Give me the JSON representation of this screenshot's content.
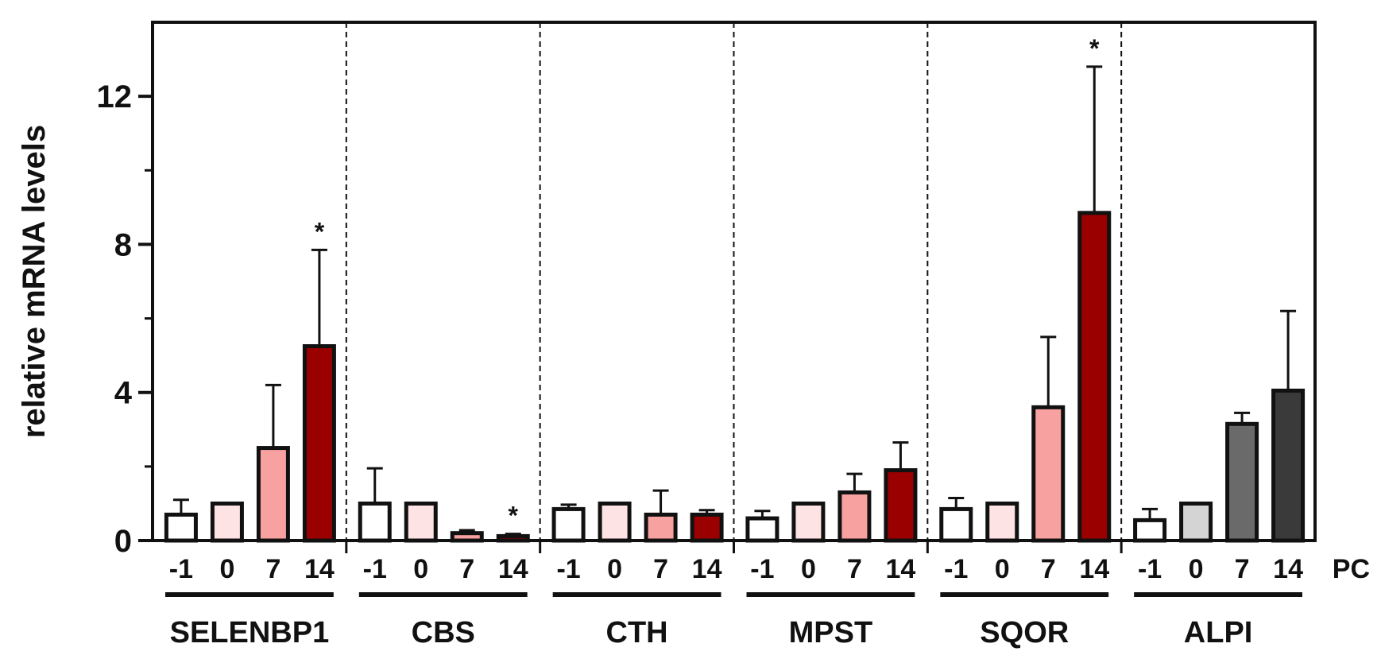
{
  "chart_data": {
    "type": "bar",
    "ylabel": "relative mRNA levels",
    "ylim": [
      0,
      14
    ],
    "yticks": [
      0,
      4,
      8,
      12
    ],
    "x_axis_label": "PC",
    "x_tick_labels": [
      "-1",
      "0",
      "7",
      "14"
    ],
    "significance_marker": "*",
    "grid": false,
    "legend": "none",
    "groups": [
      {
        "name": "SELENBP1",
        "values": [
          0.7,
          1.0,
          2.5,
          5.25
        ],
        "errors": [
          0.4,
          0.0,
          1.7,
          2.6
        ],
        "colors": [
          "#ffffff",
          "#fde3e3",
          "#f7a1a1",
          "#9a0000"
        ],
        "significant": [
          false,
          false,
          false,
          true
        ]
      },
      {
        "name": "CBS",
        "values": [
          1.0,
          1.0,
          0.2,
          0.12
        ],
        "errors": [
          0.95,
          0.0,
          0.08,
          0.06
        ],
        "colors": [
          "#ffffff",
          "#fde3e3",
          "#f7a1a1",
          "#9a0000"
        ],
        "significant": [
          false,
          false,
          false,
          true
        ]
      },
      {
        "name": "CTH",
        "values": [
          0.85,
          1.0,
          0.7,
          0.7
        ],
        "errors": [
          0.12,
          0.0,
          0.65,
          0.12
        ],
        "colors": [
          "#ffffff",
          "#fde3e3",
          "#f7a1a1",
          "#9a0000"
        ],
        "significant": [
          false,
          false,
          false,
          false
        ]
      },
      {
        "name": "MPST",
        "values": [
          0.6,
          1.0,
          1.3,
          1.9
        ],
        "errors": [
          0.2,
          0.0,
          0.5,
          0.75
        ],
        "colors": [
          "#ffffff",
          "#fde3e3",
          "#f7a1a1",
          "#9a0000"
        ],
        "significant": [
          false,
          false,
          false,
          false
        ]
      },
      {
        "name": "SQOR",
        "values": [
          0.85,
          1.0,
          3.6,
          8.85
        ],
        "errors": [
          0.3,
          0.0,
          1.9,
          3.95
        ],
        "colors": [
          "#ffffff",
          "#fde3e3",
          "#f7a1a1",
          "#9a0000"
        ],
        "significant": [
          false,
          false,
          false,
          true
        ]
      },
      {
        "name": "ALPI",
        "values": [
          0.55,
          1.0,
          3.15,
          4.05
        ],
        "errors": [
          0.3,
          0.0,
          0.3,
          2.15
        ],
        "colors": [
          "#ffffff",
          "#d4d4d4",
          "#6a6a6a",
          "#3a3a3a"
        ],
        "significant": [
          false,
          false,
          false,
          false
        ]
      }
    ]
  }
}
